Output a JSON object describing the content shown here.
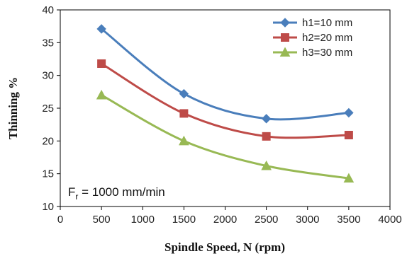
{
  "chart_data": {
    "type": "line",
    "title": "",
    "xlabel": "Spindle Speed,  N (rpm)",
    "ylabel": "Thinning %",
    "xlim": [
      0,
      4000
    ],
    "ylim": [
      10,
      40
    ],
    "x_ticks": [
      "0",
      "500",
      "1000",
      "1500",
      "2000",
      "2500",
      "3000",
      "3500",
      "4000"
    ],
    "y_ticks": [
      "10",
      "15",
      "20",
      "25",
      "30",
      "35",
      "40"
    ],
    "grid": false,
    "legend_position": "top-right",
    "annotation": {
      "main": "F",
      "subscript": "r",
      "rest": " = 1000 mm/min"
    },
    "x": [
      500,
      1500,
      2500,
      3500
    ],
    "series": [
      {
        "name": "h1=10 mm",
        "values": [
          37.1,
          27.2,
          23.4,
          24.3
        ],
        "color": "#4a7ebb",
        "marker": "diamond"
      },
      {
        "name": "h2=20 mm",
        "values": [
          31.8,
          24.2,
          20.7,
          20.9
        ],
        "color": "#be4b48",
        "marker": "square"
      },
      {
        "name": "h3=30 mm",
        "values": [
          27.0,
          20.0,
          16.2,
          14.3
        ],
        "color": "#98b954",
        "marker": "triangle"
      }
    ]
  }
}
